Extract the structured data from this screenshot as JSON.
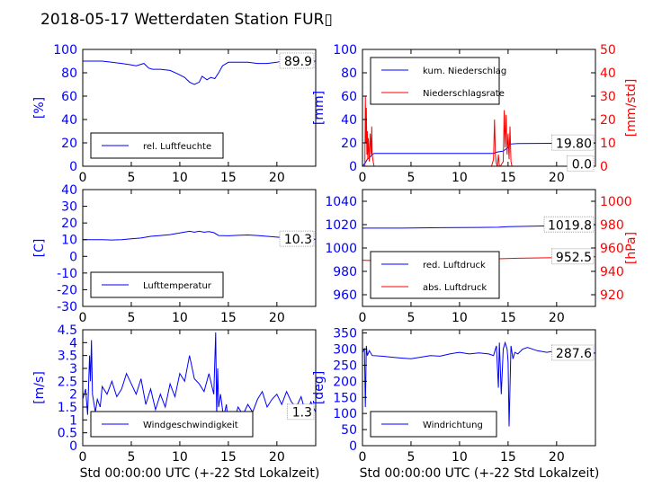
{
  "title": "2018-05-17 Wetterdaten Station FUR▯",
  "xlabel": "Std 00:00:00 UTC (+-22 Std Lokalzeit)",
  "x_ticks": [
    0,
    5,
    10,
    15,
    20
  ],
  "colors": {
    "primary": "#0000ff",
    "secondary": "#ff0000",
    "axis": "#000000"
  },
  "chart_data": [
    {
      "id": "humidity",
      "type": "line",
      "xlim": [
        0,
        24
      ],
      "ylim": [
        0,
        100
      ],
      "ylabel": "[%]",
      "yticks": [
        0,
        20,
        40,
        60,
        80,
        100
      ],
      "legend": {
        "placement": "lower-left",
        "entries": [
          "rel. Luftfeuchte"
        ]
      },
      "annotation": "89.9",
      "series": [
        {
          "name": "rel. Luftfeuchte",
          "color": "#0000ff",
          "axis": "left",
          "x": [
            0,
            1,
            2,
            3,
            4,
            4.8,
            5.5,
            6.3,
            6.8,
            7.2,
            8,
            9,
            9.8,
            10.5,
            11,
            11.5,
            12,
            12.3,
            12.8,
            13.2,
            13.6,
            14,
            14.4,
            15,
            16,
            17,
            18,
            19,
            20,
            20.5,
            21,
            22,
            23,
            24
          ],
          "y": [
            90,
            90,
            90,
            89,
            88,
            87,
            86,
            88,
            84,
            83,
            83,
            82,
            79,
            76,
            72,
            70,
            72,
            77,
            74,
            76,
            75,
            80,
            86,
            89,
            89,
            89,
            88,
            88,
            89,
            90,
            91,
            90,
            90,
            90
          ]
        }
      ]
    },
    {
      "id": "precip",
      "type": "line",
      "xlim": [
        0,
        24
      ],
      "ylim": [
        0,
        100
      ],
      "ylim_right": [
        0,
        50
      ],
      "ylabel": "[mm]",
      "ylabel_right": "[mm/std]",
      "yticks": [
        0,
        20,
        40,
        60,
        80,
        100
      ],
      "yticks_right": [
        0,
        10,
        20,
        30,
        40,
        50
      ],
      "legend": {
        "placement": "upper-left",
        "entries": [
          "kum. Niederschlag",
          "Niederschlagsrate"
        ]
      },
      "annotation": "19.80",
      "annotation_right": "0.0",
      "series": [
        {
          "name": "kum. Niederschlag",
          "color": "#0000ff",
          "axis": "left",
          "x": [
            0,
            0.3,
            0.5,
            0.8,
            1.0,
            1.2,
            13.5,
            13.8,
            14.5,
            15,
            15.2,
            16,
            24
          ],
          "y": [
            0,
            3,
            6,
            8,
            10,
            11,
            11,
            12,
            13,
            16,
            19,
            19.5,
            19.8
          ]
        },
        {
          "name": "Niederschlagsrate",
          "color": "#ff0000",
          "axis": "right",
          "x": [
            0,
            0.25,
            0.3,
            0.35,
            0.4,
            0.45,
            0.5,
            0.55,
            0.6,
            0.65,
            0.7,
            0.8,
            0.9,
            0.95,
            1.0,
            1.1,
            1.2,
            1.3,
            13.3,
            13.5,
            13.6,
            13.7,
            13.8,
            13.9,
            14,
            14.1,
            14.2,
            14.5,
            14.6,
            14.7,
            14.8,
            14.9,
            15,
            15.1,
            15.2,
            15.3,
            15.4,
            15.5,
            24
          ],
          "y": [
            0,
            0,
            30,
            10,
            25,
            5,
            15,
            3,
            12,
            8,
            2,
            14,
            5,
            17,
            5,
            2,
            0,
            0,
            0,
            3,
            20,
            5,
            1,
            0,
            5,
            0,
            0,
            2,
            24,
            8,
            22,
            5,
            14,
            3,
            17,
            2,
            0,
            0,
            0
          ]
        }
      ]
    },
    {
      "id": "temperature",
      "type": "line",
      "xlim": [
        0,
        24
      ],
      "ylim": [
        -30,
        40
      ],
      "ylabel": "[C]",
      "yticks": [
        -30,
        -20,
        -10,
        0,
        10,
        20,
        30,
        40
      ],
      "legend": {
        "placement": "lower-left",
        "entries": [
          "Lufttemperatur"
        ]
      },
      "annotation": "10.3",
      "series": [
        {
          "name": "Lufttemperatur",
          "color": "#0000ff",
          "axis": "left",
          "x": [
            0,
            1,
            2,
            3,
            4,
            5,
            6,
            7,
            8,
            9,
            10,
            11,
            11.5,
            12,
            12.5,
            13,
            13.5,
            14,
            15,
            16,
            17,
            18,
            19,
            20,
            21,
            22,
            23,
            24
          ],
          "y": [
            10,
            10,
            10,
            9.8,
            10,
            10.5,
            11,
            12,
            12.5,
            13,
            14,
            15,
            14.5,
            15,
            14.5,
            14.8,
            14.2,
            12.5,
            12.3,
            12.6,
            12.8,
            12.5,
            12,
            11.5,
            11,
            10.6,
            10.4,
            10.3
          ]
        }
      ]
    },
    {
      "id": "pressure",
      "type": "line",
      "xlim": [
        0,
        24
      ],
      "ylim": [
        950,
        1050
      ],
      "ylim_right": [
        910,
        1010
      ],
      "ylabel": "",
      "ylabel_right": "[hPa]",
      "yticks": [
        960,
        980,
        1000,
        1020,
        1040
      ],
      "yticks_right": [
        920,
        940,
        960,
        980,
        1000
      ],
      "legend": {
        "placement": "lower-left",
        "entries": [
          "red. Luftdruck",
          "abs. Luftdruck"
        ]
      },
      "annotation": "1019.8",
      "annotation_right": "952.5",
      "series": [
        {
          "name": "red. Luftdruck",
          "color": "#0000ff",
          "axis": "left",
          "x": [
            0,
            4,
            8,
            12,
            14,
            15,
            18,
            21,
            24
          ],
          "y": [
            1017,
            1017,
            1017.4,
            1017.6,
            1017.8,
            1018.2,
            1018.8,
            1019.4,
            1019.8
          ]
        },
        {
          "name": "abs. Luftdruck",
          "color": "#ff0000",
          "axis": "right",
          "x": [
            0,
            2,
            6,
            10,
            14,
            16,
            20,
            24
          ],
          "y": [
            949.5,
            949,
            949.6,
            950.2,
            950.8,
            951.2,
            951.8,
            952.5
          ]
        }
      ]
    },
    {
      "id": "windspeed",
      "type": "line",
      "xlim": [
        0,
        24
      ],
      "ylim": [
        0,
        4.5
      ],
      "ylabel": "[m/s]",
      "yticks": [
        0,
        0.5,
        1,
        1.5,
        2,
        2.5,
        3,
        3.5,
        4,
        4.5
      ],
      "legend": {
        "placement": "lower-left",
        "entries": [
          "Windgeschwindigkeit"
        ]
      },
      "annotation": "1.3",
      "series": [
        {
          "name": "Windgeschwindigkeit",
          "color": "#0000ff",
          "axis": "left",
          "x": [
            0,
            0.3,
            0.5,
            0.7,
            0.8,
            0.9,
            1.0,
            1.3,
            1.5,
            1.8,
            2,
            2.5,
            3,
            3.5,
            4,
            4.5,
            5,
            5.5,
            6,
            6.5,
            7,
            7.5,
            8,
            8.5,
            9,
            9.5,
            10,
            10.5,
            11,
            11.5,
            12,
            12.5,
            13,
            13.5,
            13.7,
            13.8,
            13.9,
            14,
            14.2,
            14.5,
            14.8,
            15,
            15.3,
            15.6,
            16,
            16.5,
            17,
            17.5,
            18,
            18.5,
            19,
            19.5,
            20,
            20.5,
            21,
            21.5,
            22,
            22.5,
            23,
            23.5,
            24
          ],
          "y": [
            1.8,
            2.2,
            1.2,
            3.5,
            2.5,
            4.1,
            2.0,
            1.3,
            1.8,
            1.5,
            2.3,
            2.0,
            2.5,
            1.9,
            2.2,
            2.8,
            2.4,
            2.0,
            2.6,
            1.6,
            2.2,
            1.4,
            2.0,
            1.5,
            2.4,
            1.9,
            2.8,
            2.5,
            3.5,
            2.6,
            2.4,
            2.1,
            2.8,
            2.0,
            4.4,
            1.2,
            3.0,
            1.5,
            2.0,
            1.1,
            1.6,
            0.8,
            1.3,
            1.0,
            1.5,
            1.2,
            1.6,
            1.3,
            1.8,
            2.1,
            1.5,
            1.8,
            2.0,
            1.6,
            2.1,
            1.7,
            1.5,
            1.9,
            1.2,
            1.7,
            1.3
          ]
        }
      ]
    },
    {
      "id": "winddir",
      "type": "line",
      "xlim": [
        0,
        24
      ],
      "ylim": [
        0,
        360
      ],
      "ylabel": "[deg]",
      "yticks": [
        0,
        50,
        100,
        150,
        200,
        250,
        300,
        350
      ],
      "legend": {
        "placement": "lower-left",
        "entries": [
          "Windrichtung"
        ]
      },
      "annotation": "287.6",
      "series": [
        {
          "name": "Windrichtung",
          "color": "#0000ff",
          "axis": "left",
          "x": [
            0,
            0.2,
            0.3,
            0.4,
            0.5,
            0.7,
            1,
            2,
            3,
            4,
            5,
            6,
            7,
            8,
            9,
            10,
            11,
            12,
            13,
            13.5,
            13.8,
            14,
            14.1,
            14.3,
            14.5,
            14.7,
            14.9,
            15,
            15.1,
            15.3,
            15.5,
            15.7,
            16,
            16.5,
            17,
            18,
            19,
            20,
            21,
            22,
            23,
            24
          ],
          "y": [
            290,
            300,
            120,
            310,
            280,
            295,
            280,
            278,
            275,
            272,
            270,
            275,
            280,
            278,
            285,
            290,
            285,
            288,
            285,
            280,
            310,
            180,
            320,
            160,
            300,
            320,
            300,
            260,
            60,
            310,
            270,
            290,
            285,
            300,
            305,
            295,
            290,
            295,
            290,
            290,
            288,
            287.6
          ]
        }
      ]
    }
  ]
}
